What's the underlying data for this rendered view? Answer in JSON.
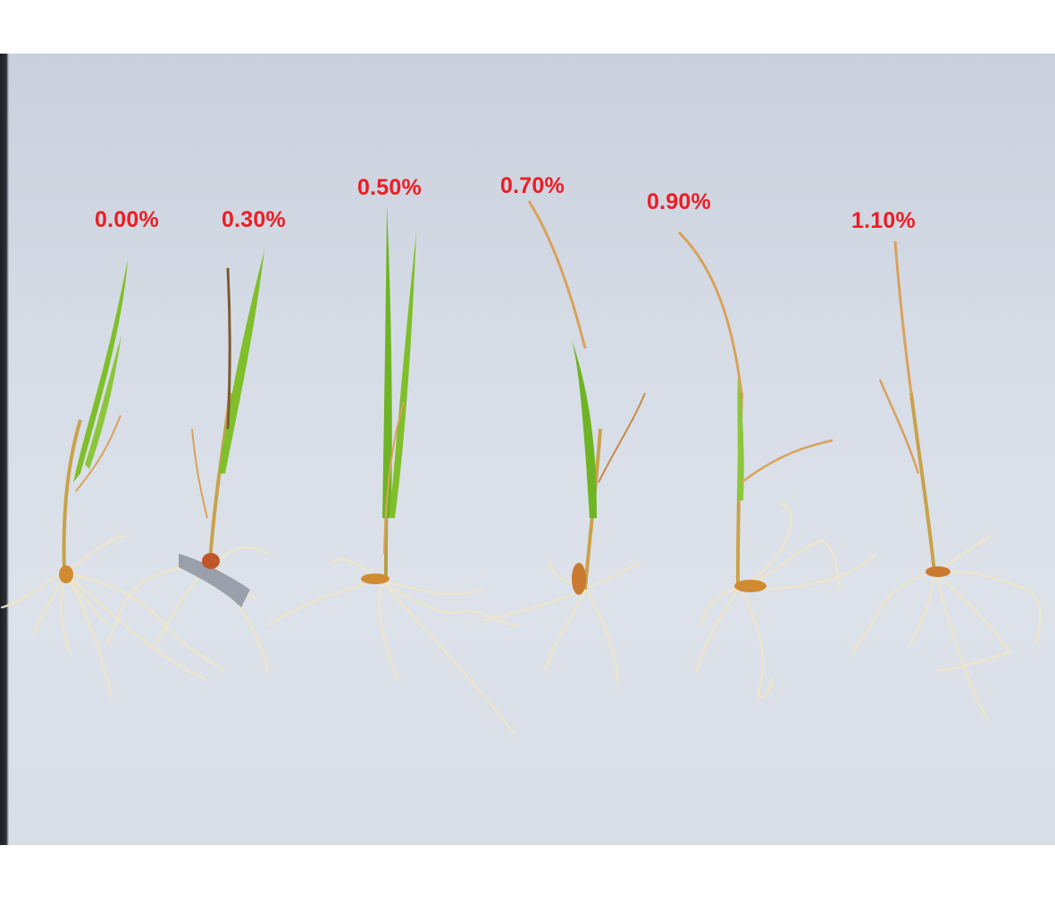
{
  "labels": [
    "0.00%",
    "0.30%",
    "0.50%",
    "0.70%",
    "0.90%",
    "1.10%"
  ],
  "colors": {
    "label": "#ee1c24",
    "background": "#d8dde6",
    "leaf_green": "#7fbf2a",
    "leaf_dry": "#d9a25a",
    "root": "#efe6c8"
  }
}
